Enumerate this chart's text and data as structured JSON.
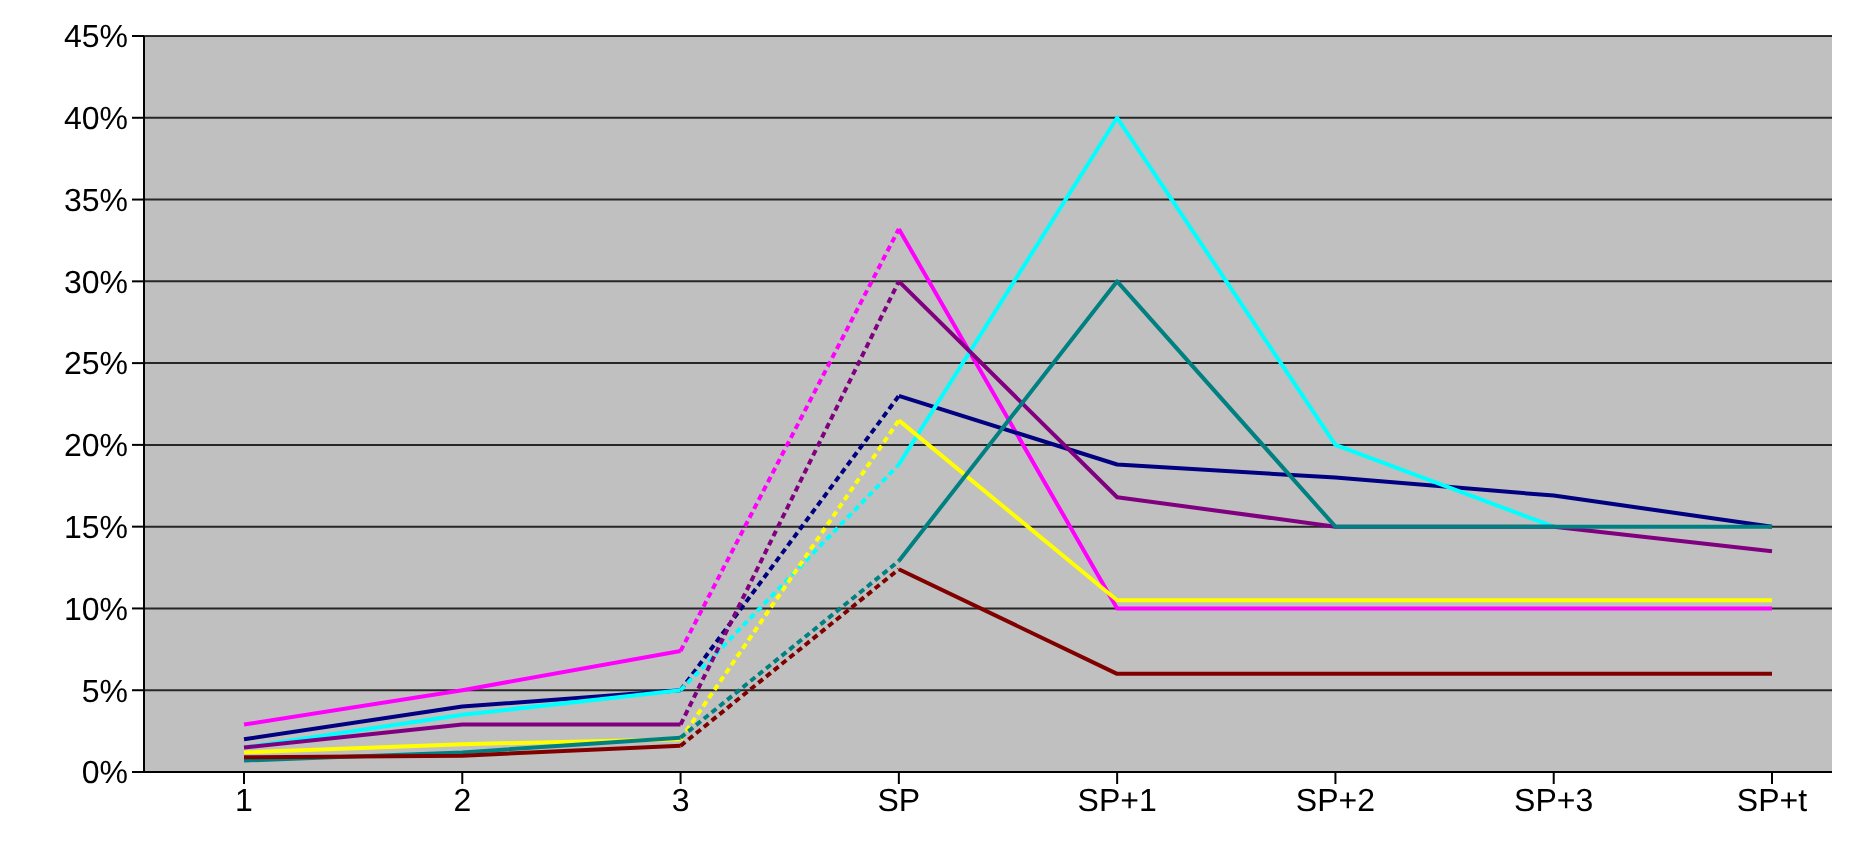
{
  "chart_data": {
    "type": "line",
    "categories": [
      "1",
      "2",
      "3",
      "SP",
      "SP+1",
      "SP+2",
      "SP+3",
      "SP+t"
    ],
    "ylim": [
      0,
      45
    ],
    "yticks": [
      {
        "value": 0,
        "label": "0%"
      },
      {
        "value": 5,
        "label": "5%"
      },
      {
        "value": 10,
        "label": "10%"
      },
      {
        "value": 15,
        "label": "15%"
      },
      {
        "value": 20,
        "label": "20%"
      },
      {
        "value": 25,
        "label": "25%"
      },
      {
        "value": 30,
        "label": "30%"
      },
      {
        "value": 35,
        "label": "35%"
      },
      {
        "value": 40,
        "label": "40%"
      },
      {
        "value": 45,
        "label": "45%"
      }
    ],
    "grid": "y",
    "marker": "none",
    "series": [
      {
        "color": "#ff00ff",
        "line_style": "solid",
        "values": [
          2.9,
          5.0,
          7.4,
          null,
          null,
          null,
          null,
          null
        ]
      },
      {
        "color": "#ff00ff",
        "line_style": "dotted",
        "values": [
          null,
          null,
          7.4,
          33.2,
          null,
          null,
          null,
          null
        ]
      },
      {
        "color": "#ff00ff",
        "line_style": "solid",
        "values": [
          null,
          null,
          null,
          33.2,
          10,
          10,
          10,
          10
        ]
      },
      {
        "color": "#000080",
        "line_style": "solid",
        "values": [
          2.0,
          4.0,
          5.0,
          null,
          null,
          null,
          null,
          null
        ]
      },
      {
        "color": "#000080",
        "line_style": "dotted",
        "values": [
          null,
          null,
          5.0,
          23,
          null,
          null,
          null,
          null
        ]
      },
      {
        "color": "#000080",
        "line_style": "solid",
        "values": [
          null,
          null,
          null,
          23,
          18.8,
          18,
          16.9,
          15
        ]
      },
      {
        "color": "#00ffff",
        "line_style": "solid",
        "values": [
          1.5,
          3.5,
          5.0,
          null,
          null,
          null,
          null,
          null
        ]
      },
      {
        "color": "#00ffff",
        "line_style": "dotted",
        "values": [
          null,
          null,
          5.0,
          18.8,
          null,
          null,
          null,
          null
        ]
      },
      {
        "color": "#00ffff",
        "line_style": "solid",
        "values": [
          null,
          null,
          null,
          18.8,
          40,
          20,
          15,
          null
        ]
      },
      {
        "color": "#800080",
        "line_style": "solid",
        "values": [
          1.5,
          2.9,
          2.9,
          null,
          null,
          null,
          null,
          null
        ]
      },
      {
        "color": "#800080",
        "line_style": "dotted",
        "values": [
          null,
          null,
          2.9,
          30,
          null,
          null,
          null,
          null
        ]
      },
      {
        "color": "#800080",
        "line_style": "solid",
        "values": [
          null,
          null,
          null,
          30,
          16.8,
          15,
          15,
          13.5
        ]
      },
      {
        "color": "#ffff00",
        "line_style": "solid",
        "values": [
          1.2,
          1.7,
          2.0,
          null,
          null,
          null,
          null,
          null
        ]
      },
      {
        "color": "#ffff00",
        "line_style": "dotted",
        "values": [
          null,
          null,
          2.0,
          21.5,
          null,
          null,
          null,
          null
        ]
      },
      {
        "color": "#ffff00",
        "line_style": "solid",
        "values": [
          null,
          null,
          null,
          21.5,
          10.5,
          10.5,
          10.5,
          10.5
        ]
      },
      {
        "color": "#008080",
        "line_style": "solid",
        "values": [
          0.7,
          1.2,
          2.1,
          null,
          null,
          null,
          null,
          null
        ]
      },
      {
        "color": "#008080",
        "line_style": "dotted",
        "values": [
          null,
          null,
          2.1,
          12.9,
          null,
          null,
          null,
          null
        ]
      },
      {
        "color": "#008080",
        "line_style": "solid",
        "values": [
          null,
          null,
          null,
          12.9,
          30,
          15,
          15,
          15
        ]
      },
      {
        "color": "#800000",
        "line_style": "solid",
        "values": [
          0.9,
          1.0,
          1.6,
          null,
          null,
          null,
          null,
          null
        ]
      },
      {
        "color": "#800000",
        "line_style": "dotted",
        "values": [
          null,
          null,
          1.6,
          12.4,
          null,
          null,
          null,
          null
        ]
      },
      {
        "color": "#800000",
        "line_style": "solid",
        "values": [
          null,
          null,
          null,
          12.4,
          6,
          6,
          6,
          6
        ]
      }
    ]
  }
}
